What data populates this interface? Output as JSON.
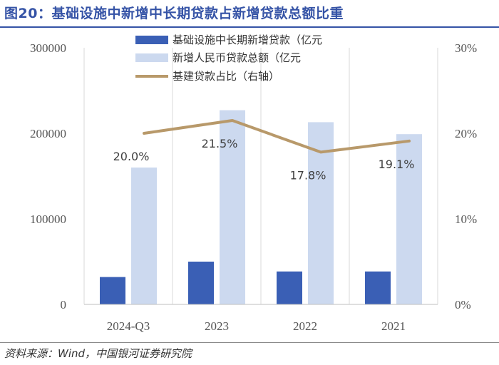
{
  "title": "图20：基础设施中新增中长期贷款占新增贷款总额比重",
  "source": "资料来源：Wind，中国银河证券研究院",
  "chart_data": {
    "type": "bar",
    "categories": [
      "2024-Q3",
      "2023",
      "2022",
      "2021"
    ],
    "series": [
      {
        "name": "基础设施中长期新增贷款（亿元",
        "type": "bar",
        "axis": "left",
        "color": "#3a5fb5",
        "values": [
          32000,
          50000,
          38500,
          38500
        ]
      },
      {
        "name": "新增人民币贷款总额（亿元",
        "type": "bar",
        "axis": "left",
        "color": "#ccd9ef",
        "values": [
          160000,
          227000,
          213000,
          199000
        ]
      },
      {
        "name": "基建贷款占比（右轴）",
        "type": "line",
        "axis": "right",
        "color": "#b8996a",
        "values": [
          20.0,
          21.5,
          17.8,
          19.1
        ],
        "labels": [
          "20.0%",
          "21.5%",
          "17.8%",
          "19.1%"
        ]
      }
    ],
    "yleft": {
      "min": 0,
      "max": 300000,
      "ticks": [
        "0",
        "100000",
        "200000",
        "300000"
      ]
    },
    "yright": {
      "min": 0,
      "max": 30,
      "ticks": [
        "0%",
        "10%",
        "20%",
        "30%"
      ]
    },
    "grid": true
  }
}
